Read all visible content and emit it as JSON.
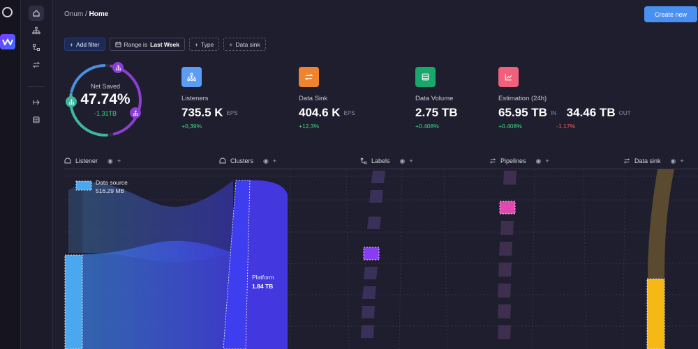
{
  "breadcrumb": {
    "root": "Onum",
    "separator": " / ",
    "current": "Home"
  },
  "header": {
    "create_label": "Create new"
  },
  "filters": {
    "add_label": "Add filter",
    "range_prefix": "Range is",
    "range_value": "Last Week",
    "type_label": "Type",
    "sink_label": "Data sink"
  },
  "net_saved": {
    "label": "Net Saved",
    "value": "47.74%",
    "delta": "-1.31TB",
    "fraction": 0.4774
  },
  "kpis": {
    "listeners": {
      "label": "Listeners",
      "value": "735.5 K",
      "unit": "EPS",
      "change": "+0,39%",
      "color": "#5b9cf5"
    },
    "data_sink": {
      "label": "Data Sink",
      "value": "404.6 K",
      "unit": "EPS",
      "change": "+12.3%",
      "color": "#f0832e"
    },
    "data_volume": {
      "label": "Data Volume",
      "value": "2.75 TB",
      "change": "+0.408%",
      "color": "#18a86b"
    },
    "estimation": {
      "label": "Estimation (24h)",
      "value_in": "65.95 TB",
      "unit_in": "IN",
      "change_in": "+0.408%",
      "value_out": "34.46 TB",
      "unit_out": "OUT",
      "change_out": "-1.17%",
      "color": "#f0607a"
    }
  },
  "columns": {
    "listener": "Listener",
    "clusters": "Clusters",
    "labels": "Labels",
    "pipelines": "Pipelines",
    "data_sink": "Data sink"
  },
  "flow": {
    "source": {
      "name": "Data source",
      "size": "516.29 MB"
    },
    "platform": {
      "name": "Platform",
      "size": "1.84 TB"
    }
  },
  "colors": {
    "accent": "#4a90f0",
    "positive": "#3ddc84",
    "negative": "#ff5a5a",
    "listener_bar": "#4aa8f0",
    "cluster_bar": "#3f3df0",
    "label_node": "#8a3cf0",
    "pipeline_node": "#e04ab0",
    "sink_bar": "#f5b814"
  }
}
